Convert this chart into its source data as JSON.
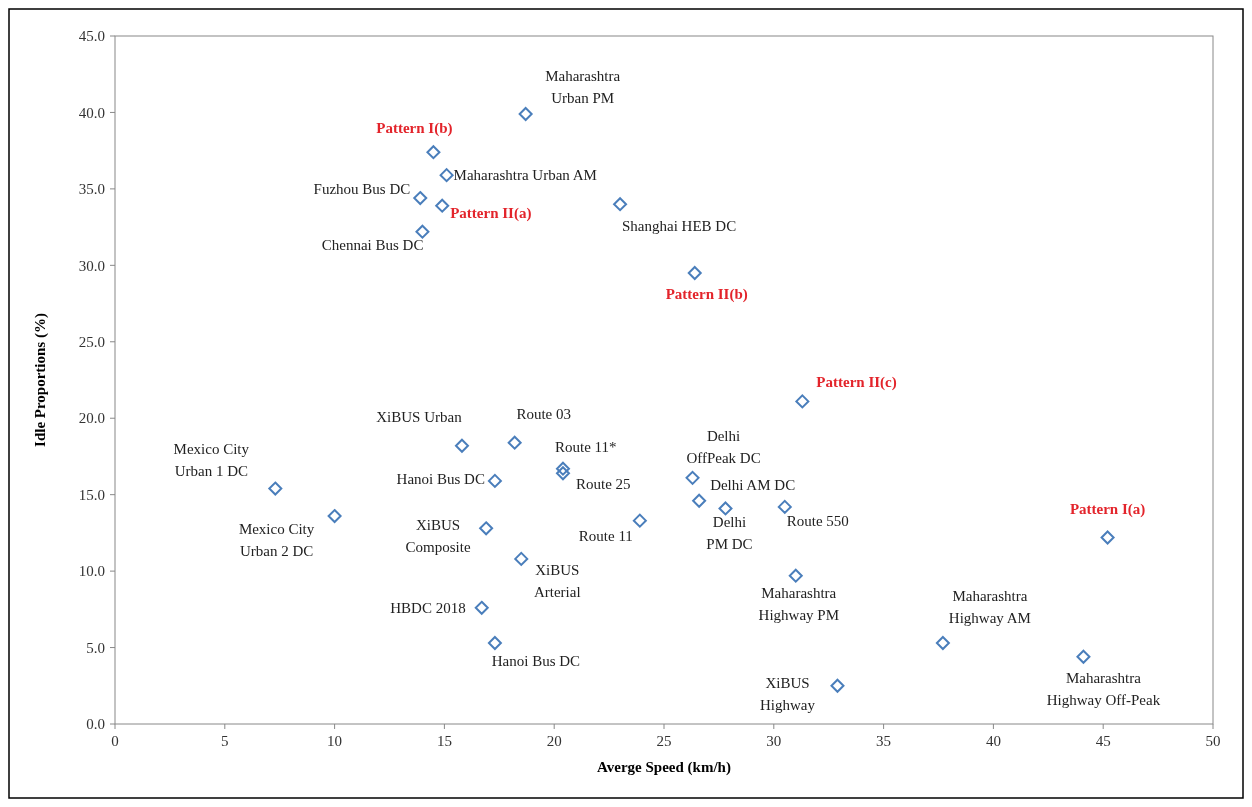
{
  "chart_data": {
    "type": "scatter",
    "xlabel": "Averge Speed (km/h)",
    "ylabel": "Idle Proportions (%)",
    "xlim": [
      0,
      50
    ],
    "xticks": [
      0,
      5,
      10,
      15,
      20,
      25,
      30,
      35,
      40,
      45,
      50
    ],
    "ylim": [
      0,
      45
    ],
    "yticks": [
      {
        "value": 0,
        "label": "0.0"
      },
      {
        "value": 5,
        "label": "5.0"
      },
      {
        "value": 10,
        "label": "10.0"
      },
      {
        "value": 15,
        "label": "15.0"
      },
      {
        "value": 20,
        "label": "20.0"
      },
      {
        "value": 25,
        "label": "25.0"
      },
      {
        "value": 30,
        "label": "30.0"
      },
      {
        "value": 35,
        "label": "35.0"
      },
      {
        "value": 40,
        "label": "40.0"
      },
      {
        "value": 45,
        "label": "45.0"
      }
    ],
    "grid": false,
    "marker": "diamond",
    "series": [
      {
        "color": "#4a7ebb",
        "x": [
          18.7,
          14.5,
          15.1,
          13.9,
          14.9,
          14.0,
          23.0,
          26.4,
          31.3,
          7.3,
          10.0,
          15.8,
          18.2,
          20.4,
          20.4,
          17.3,
          16.9,
          23.9,
          18.5,
          16.7,
          17.3,
          26.3,
          26.6,
          27.8,
          30.5,
          45.2,
          31.0,
          37.7,
          44.1,
          32.9
        ],
        "values": [
          39.9,
          37.4,
          35.9,
          34.4,
          33.9,
          32.2,
          34.0,
          29.5,
          21.1,
          15.4,
          13.6,
          18.2,
          18.4,
          16.7,
          16.4,
          15.9,
          12.8,
          13.3,
          10.8,
          7.6,
          5.3,
          16.1,
          14.6,
          14.1,
          14.2,
          12.2,
          9.7,
          5.3,
          4.4,
          2.5
        ]
      }
    ],
    "annotations": [
      {
        "text": "Maharashtra\nUrban PM",
        "x": 18.7,
        "y": 39.9
      },
      {
        "text": "Pattern I(b)",
        "x": 14.5,
        "y": 37.4
      },
      {
        "text": "Maharashtra Urban AM",
        "x": 15.1,
        "y": 35.9
      },
      {
        "text": "Fuzhou Bus DC",
        "x": 13.9,
        "y": 34.4
      },
      {
        "text": "Pattern II(a)",
        "x": 14.9,
        "y": 33.9
      },
      {
        "text": "Chennai Bus DC",
        "x": 14.0,
        "y": 32.2
      },
      {
        "text": "Shanghai HEB DC",
        "x": 23.0,
        "y": 34.0
      },
      {
        "text": "Pattern II(b)",
        "x": 26.4,
        "y": 29.5
      },
      {
        "text": "Pattern II(c)",
        "x": 31.3,
        "y": 21.1
      },
      {
        "text": "Mexico City\nUrban 1 DC",
        "x": 7.3,
        "y": 15.4
      },
      {
        "text": "Mexico City\nUrban 2 DC",
        "x": 10.0,
        "y": 13.6
      },
      {
        "text": "XiBUS Urban",
        "x": 15.8,
        "y": 18.2
      },
      {
        "text": "Route 03",
        "x": 18.2,
        "y": 18.4
      },
      {
        "text": "Route 11*",
        "x": 20.4,
        "y": 16.7
      },
      {
        "text": "Route 25",
        "x": 20.4,
        "y": 16.4
      },
      {
        "text": "Hanoi Bus DC",
        "x": 17.3,
        "y": 15.9
      },
      {
        "text": "XiBUS\nComposite",
        "x": 16.9,
        "y": 12.8
      },
      {
        "text": "Route 11",
        "x": 23.9,
        "y": 13.3
      },
      {
        "text": "XiBUS\nArterial",
        "x": 18.5,
        "y": 10.8
      },
      {
        "text": "HBDC 2018",
        "x": 16.7,
        "y": 7.6
      },
      {
        "text": "Hanoi Bus DC",
        "x": 17.3,
        "y": 5.3
      },
      {
        "text": "Delhi\nOffPeak DC",
        "x": 26.3,
        "y": 16.1
      },
      {
        "text": "Delhi AM DC",
        "x": 26.6,
        "y": 14.6
      },
      {
        "text": "Delhi\nPM DC",
        "x": 27.8,
        "y": 14.1
      },
      {
        "text": "Route 550",
        "x": 30.5,
        "y": 14.2
      },
      {
        "text": "Pattern I(a)",
        "x": 45.2,
        "y": 12.2
      },
      {
        "text": "Maharashtra\nHighway PM",
        "x": 31.0,
        "y": 9.7
      },
      {
        "text": "Maharashtra\nHighway AM",
        "x": 37.7,
        "y": 5.3
      },
      {
        "text": "Maharashtra\nHighway Off-Peak",
        "x": 44.1,
        "y": 4.4
      },
      {
        "text": "XiBUS\nHighway",
        "x": 32.9,
        "y": 2.5
      }
    ]
  }
}
